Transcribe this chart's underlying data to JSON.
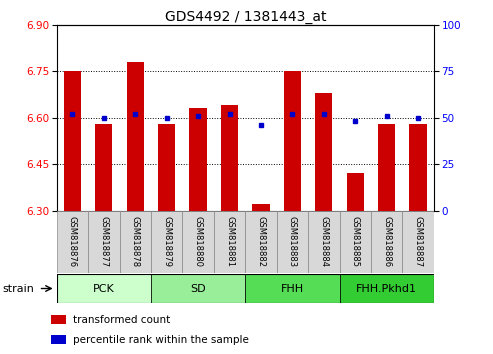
{
  "title": "GDS4492 / 1381443_at",
  "samples": [
    "GSM818876",
    "GSM818877",
    "GSM818878",
    "GSM818879",
    "GSM818880",
    "GSM818881",
    "GSM818882",
    "GSM818883",
    "GSM818884",
    "GSM818885",
    "GSM818886",
    "GSM818887"
  ],
  "transformed_counts": [
    6.75,
    6.58,
    6.78,
    6.58,
    6.63,
    6.64,
    6.32,
    6.75,
    6.68,
    6.42,
    6.58,
    6.58
  ],
  "percentile_ranks": [
    52,
    50,
    52,
    50,
    51,
    52,
    46,
    52,
    52,
    48,
    51,
    50
  ],
  "ylim_left": [
    6.3,
    6.9
  ],
  "ylim_right": [
    0,
    100
  ],
  "yticks_left": [
    6.3,
    6.45,
    6.6,
    6.75,
    6.9
  ],
  "yticks_right": [
    0,
    25,
    50,
    75,
    100
  ],
  "grid_values": [
    6.45,
    6.6,
    6.75
  ],
  "bar_color": "#cc0000",
  "percentile_color": "#0000cc",
  "groups": [
    {
      "label": "PCK",
      "start": 0,
      "end": 2,
      "color": "#ccffcc"
    },
    {
      "label": "SD",
      "start": 3,
      "end": 5,
      "color": "#99ee99"
    },
    {
      "label": "FHH",
      "start": 6,
      "end": 8,
      "color": "#55dd55"
    },
    {
      "label": "FHH.Pkhd1",
      "start": 9,
      "end": 11,
      "color": "#33cc33"
    }
  ],
  "legend_bar_color": "#cc0000",
  "legend_dot_color": "#0000cc",
  "title_fontsize": 10,
  "tick_fontsize": 7.5,
  "sample_fontsize": 6.0,
  "group_fontsize": 8,
  "legend_fontsize": 7.5,
  "strain_fontsize": 8,
  "bar_width": 0.55,
  "marker_size": 3.5
}
